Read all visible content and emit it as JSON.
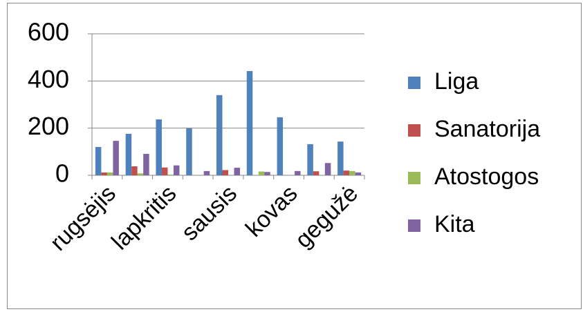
{
  "chart_data": {
    "type": "bar",
    "categories": [
      "rugsėjis",
      null,
      "lapkritis",
      null,
      "sausis",
      null,
      "kovas",
      null,
      "gegužė"
    ],
    "series": [
      {
        "name": "Liga",
        "color": "#4f81bd",
        "values": [
          120,
          176,
          237,
          199,
          340,
          442,
          246,
          132,
          143
        ]
      },
      {
        "name": "Sanatorija",
        "color": "#c0504d",
        "values": [
          12,
          38,
          33,
          0,
          22,
          0,
          0,
          17,
          20
        ]
      },
      {
        "name": "Atostogos",
        "color": "#9bbb59",
        "values": [
          12,
          8,
          3,
          0,
          0,
          16,
          0,
          0,
          18
        ]
      },
      {
        "name": "Kita",
        "color": "#8064a2",
        "values": [
          146,
          91,
          42,
          18,
          32,
          14,
          18,
          52,
          12
        ]
      }
    ],
    "ylim": [
      0,
      600
    ],
    "yticks": [
      0,
      200,
      400,
      600
    ],
    "grid": true,
    "legend": "right"
  }
}
